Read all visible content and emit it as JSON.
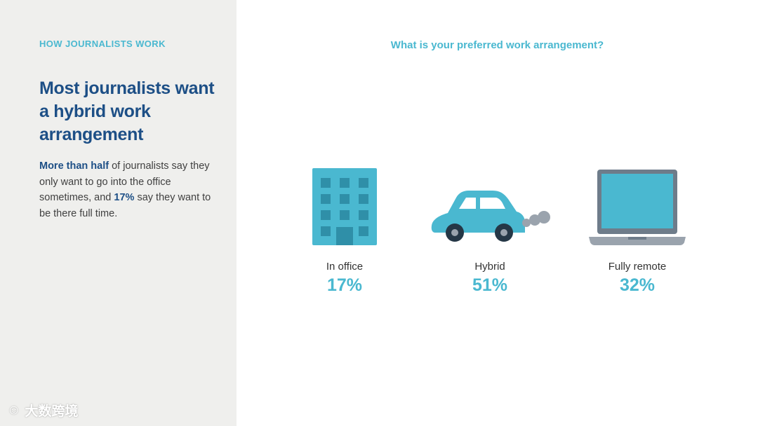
{
  "left": {
    "eyebrow": "HOW JOURNALISTS WORK",
    "headline": "Most journalists want a hybrid work arrangement",
    "body": {
      "highlight1": "More than half",
      "text1": " of journalists say they only want to go into the office sometimes, and ",
      "highlight2": "17%",
      "text2": " say they want to be there full time."
    }
  },
  "chart_data": {
    "type": "pictograph",
    "title": "What is your preferred work arrangement?",
    "categories": [
      "In office",
      "Hybrid",
      "Fully remote"
    ],
    "values": [
      17,
      51,
      32
    ],
    "value_labels": [
      "17%",
      "51%",
      "32%"
    ],
    "unit": "%",
    "icons": [
      "office-building-icon",
      "car-icon",
      "laptop-icon"
    ]
  },
  "colors": {
    "accent": "#4ab8d0",
    "headline": "#1d4f86",
    "panel": "#efefed",
    "icon_dark": "#2f8fa8",
    "icon_gray": "#9aa3ad"
  },
  "watermark": "大数跨境"
}
